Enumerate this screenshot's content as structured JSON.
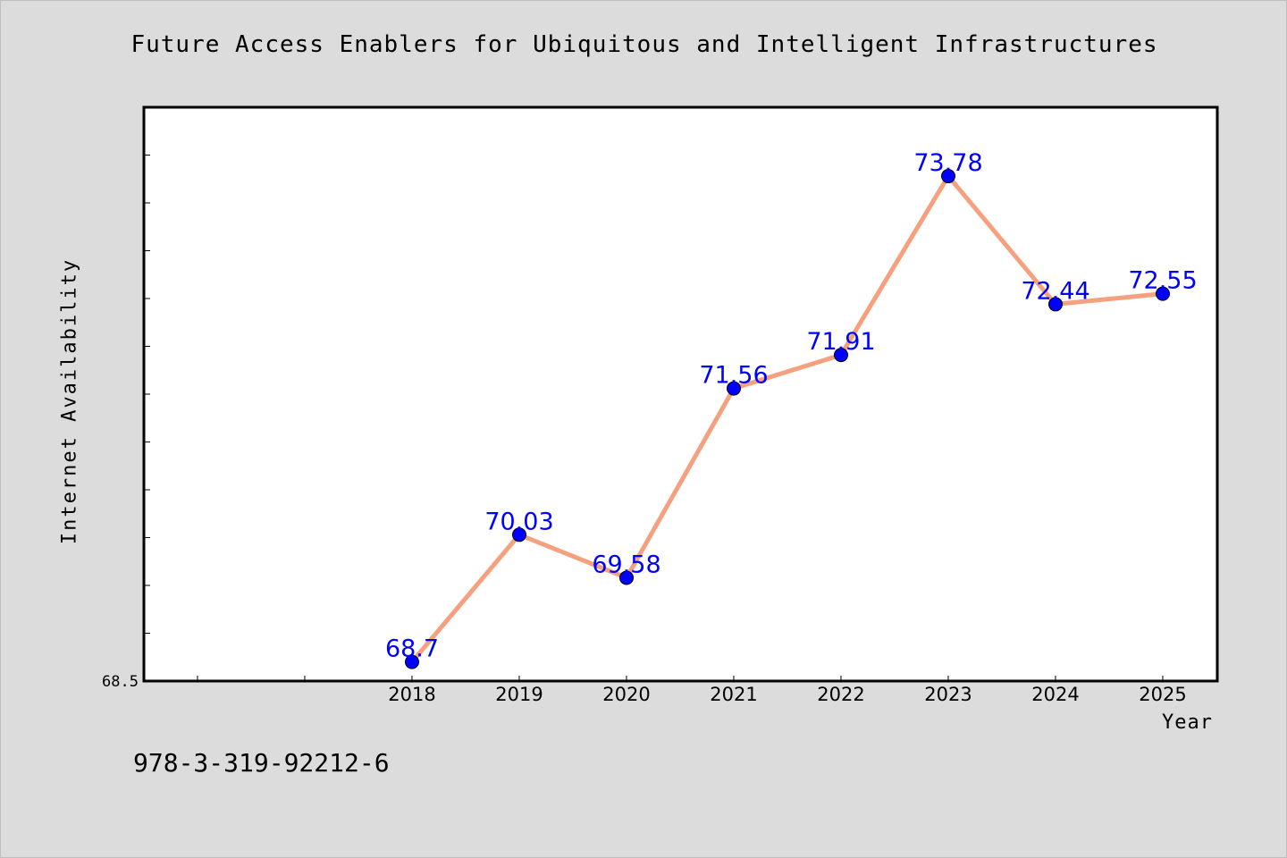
{
  "chart_data": {
    "type": "line",
    "title": "Future Access Enablers for Ubiquitous and Intelligent Infrastructures",
    "xlabel": "Year",
    "ylabel": "Internet Availability",
    "categories": [
      "2018",
      "2019",
      "2020",
      "2021",
      "2022",
      "2023",
      "2024",
      "2025"
    ],
    "values": [
      68.7,
      70.03,
      69.58,
      71.56,
      71.91,
      73.78,
      72.44,
      72.55
    ],
    "data_labels": [
      "68.7",
      "70.03",
      "69.58",
      "71.56",
      "71.91",
      "73.78",
      "72.44",
      "72.55"
    ],
    "y_tick_labels": [
      "68.5"
    ],
    "ylim": [
      68.5,
      74.5
    ],
    "grid": false,
    "legend": "none",
    "line_color": "#f5a07f",
    "marker_color": "#0000ff",
    "label_color": "#0000ff"
  },
  "footnote": "978-3-319-92212-6"
}
